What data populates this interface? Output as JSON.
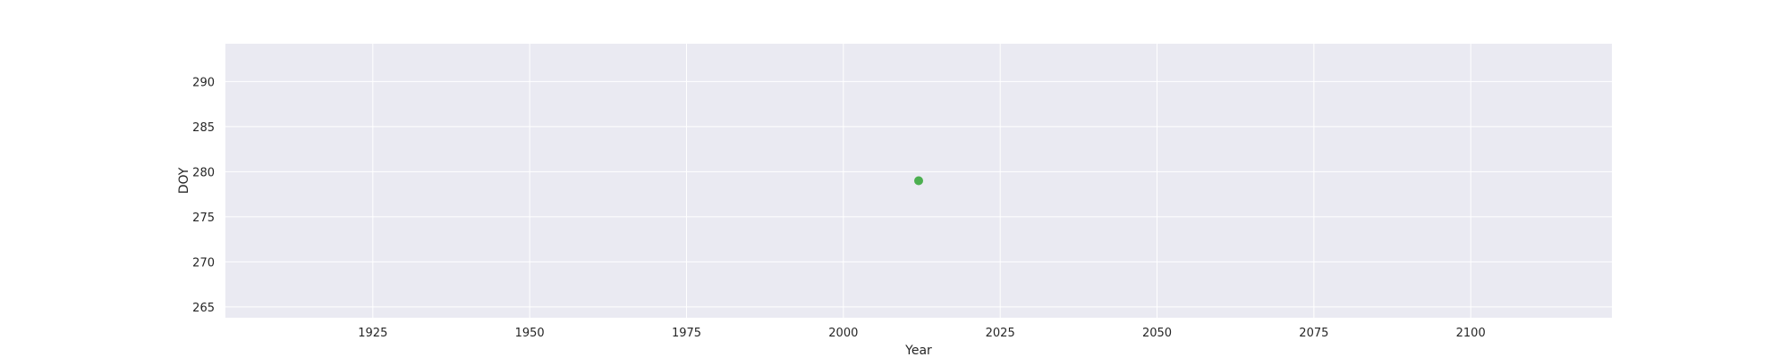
{
  "chart_data": {
    "type": "scatter",
    "title": "",
    "xlabel": "Year",
    "ylabel": "DOY",
    "xlim": [
      1901.5,
      2122.5
    ],
    "ylim": [
      263.8,
      294.2
    ],
    "xticks": [
      1925,
      1950,
      1975,
      2000,
      2025,
      2050,
      2075,
      2100
    ],
    "yticks": [
      265,
      270,
      275,
      280,
      285,
      290
    ],
    "grid": true,
    "legend": "none",
    "series": [
      {
        "color": "#4caf50",
        "points": [
          {
            "x": 2012,
            "y": 279
          }
        ]
      }
    ],
    "colors": {
      "plot_background": "#eaeaf2",
      "grid": "#ffffff",
      "text": "#262626"
    }
  }
}
